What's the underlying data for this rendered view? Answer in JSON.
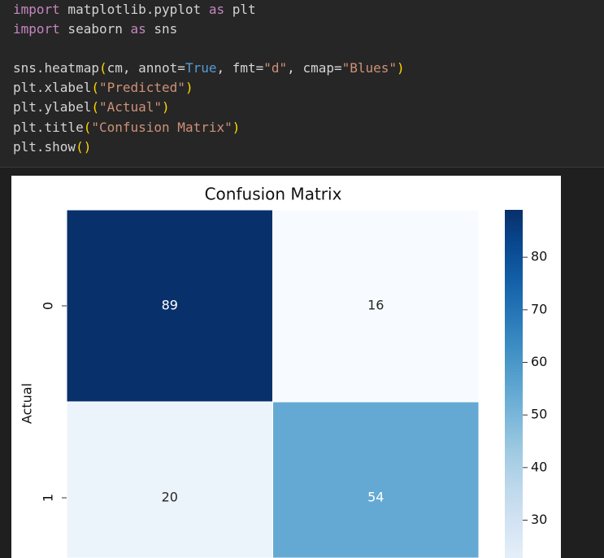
{
  "code": {
    "lines": [
      [
        "import",
        " matplotlib.pyplot ",
        "as",
        " plt"
      ],
      [
        "import",
        " seaborn ",
        "as",
        " sns"
      ],
      [
        "sns.heatmap",
        "(",
        "cm, annot=",
        "True",
        ", fmt=",
        "\"d\"",
        ", cmap=",
        "\"Blues\"",
        ")"
      ],
      [
        "plt.xlabel",
        "(",
        "\"Predicted\"",
        ")"
      ],
      [
        "plt.ylabel",
        "(",
        "\"Actual\"",
        ")"
      ],
      [
        "plt.title",
        "(",
        "\"Confusion Matrix\"",
        ")"
      ],
      [
        "plt.show",
        "()"
      ]
    ]
  },
  "chart_data": {
    "type": "heatmap",
    "title": "Confusion Matrix",
    "ylabel": "Actual",
    "rows": [
      "0",
      "1"
    ],
    "values": [
      [
        89,
        16
      ],
      [
        20,
        54
      ]
    ],
    "cmap": "Blues",
    "colorbar": {
      "lim": [
        16,
        89
      ],
      "ticks": [
        30,
        40,
        50,
        60,
        70,
        80
      ]
    }
  }
}
